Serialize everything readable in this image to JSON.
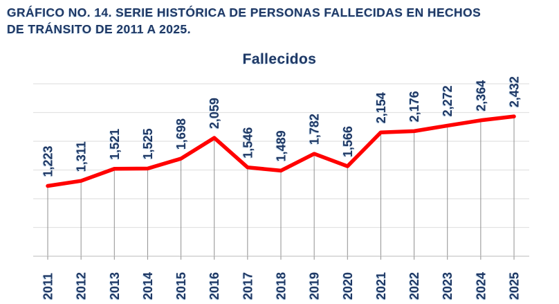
{
  "header": {
    "title_lines": [
      "GRÁFICO NO. 14. SERIE HISTÓRICA DE PERSONAS FALLECIDAS EN HECHOS",
      "DE TRÁNSITO DE 2011 A 2025."
    ]
  },
  "chart_data": {
    "type": "line",
    "title": "Fallecidos",
    "series_name": "Fallecidos",
    "categories": [
      "2011",
      "2012",
      "2013",
      "2014",
      "2015",
      "2016",
      "2017",
      "2018",
      "2019",
      "2020",
      "2021",
      "2022",
      "2023",
      "2024",
      "2025"
    ],
    "values": [
      1223,
      1311,
      1521,
      1525,
      1698,
      2059,
      1546,
      1489,
      1782,
      1566,
      2154,
      2176,
      2272,
      2364,
      2432
    ],
    "labels": [
      "1,223",
      "1,311",
      "1,521",
      "1,525",
      "1,698",
      "2,059",
      "1,546",
      "1,489",
      "1,782",
      "1,566",
      "2,154",
      "2,176",
      "2,272",
      "2,364",
      "2,432"
    ],
    "xlabel": "",
    "ylabel": "",
    "ylim": [
      0,
      3000
    ],
    "gridline_step": 500,
    "grid": true,
    "legend": "none",
    "label_rotation_deg": 90,
    "style": {
      "line_color": "#ff0000",
      "text_color": "#1f3864",
      "gridline_color": "#e2e2e2",
      "dropline_color": "#8f8f8f",
      "axis_color": "#c8c8c8",
      "background": "#ffffff"
    }
  }
}
